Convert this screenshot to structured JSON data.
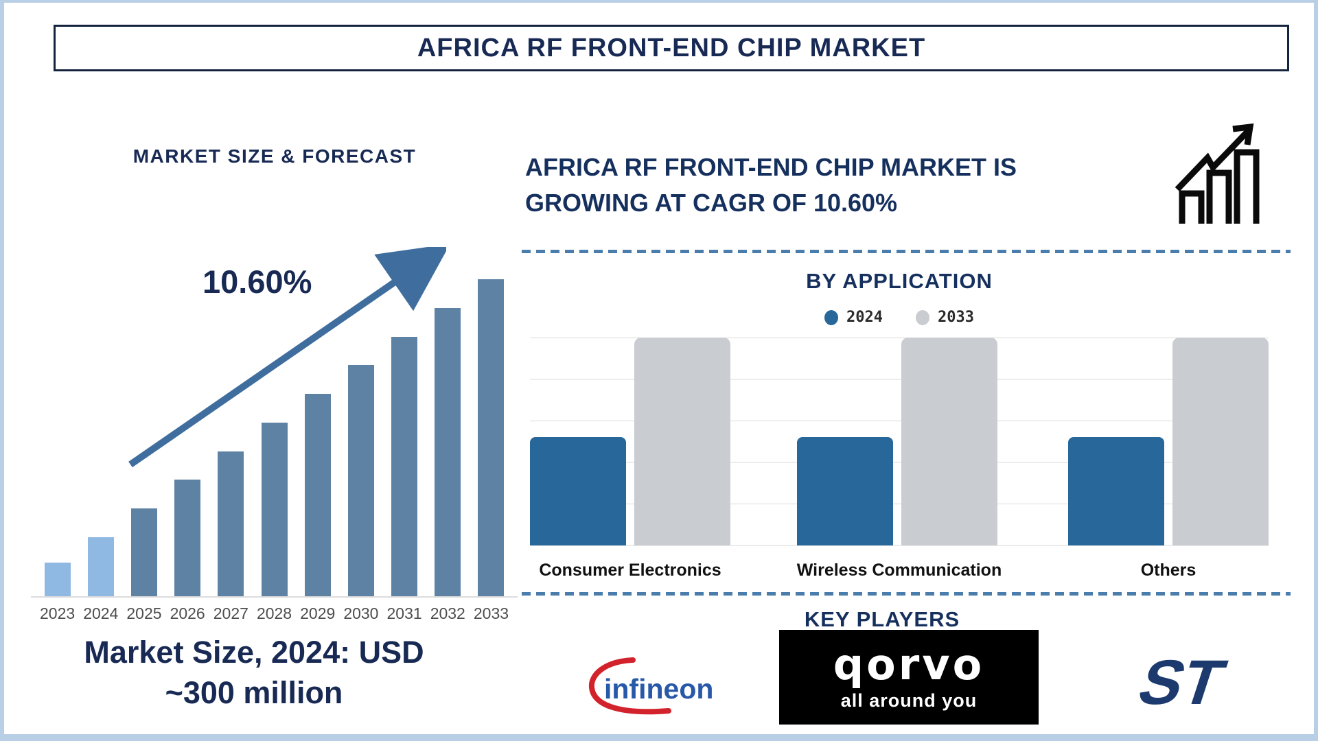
{
  "title": "AFRICA RF FRONT-END CHIP MARKET",
  "colors": {
    "navy": "#182a54",
    "steel_arrow": "#3f6e9e",
    "frame": "#b9cfe6",
    "history_bar": "#8fb9e2",
    "forecast_bar": "#5e82a3",
    "blue_2024": "#27679a",
    "gray_2033": "#c9ccd0",
    "dashed_line": "#4a7dab",
    "year_label": "#4d4d4d"
  },
  "left_panel": {
    "heading": "MARKET SIZE & FORECAST",
    "cagr_annotation": "10.60%",
    "market_size_line1": "Market Size, 2024: USD",
    "market_size_line2": "~300 million"
  },
  "right_panel": {
    "heading_line1": "AFRICA RF FRONT-END CHIP MARKET IS",
    "heading_line2": "GROWING AT CAGR OF 10.60%",
    "by_application_title": "BY APPLICATION",
    "legend": [
      {
        "label": "2024",
        "color": "#27679a"
      },
      {
        "label": "2033",
        "color": "#c9ccd0"
      }
    ],
    "key_players_title": "KEY PLAYERS",
    "players": {
      "infineon": "infineon",
      "qorvo": "qorvo",
      "qorvo_tagline": "all around you",
      "st": "ST"
    }
  },
  "chart_data": [
    {
      "type": "bar",
      "title": "MARKET SIZE & FORECAST",
      "categories": [
        "2023",
        "2024",
        "2025",
        "2026",
        "2027",
        "2028",
        "2029",
        "2030",
        "2031",
        "2032",
        "2033"
      ],
      "values_pct_of_2033": [
        11,
        19,
        28,
        37,
        46,
        55,
        64,
        73,
        82,
        91,
        100
      ],
      "annotation": "10.60%",
      "note": "Market Size, 2024: USD ~300 million",
      "bar_colors": {
        "2023_2024_history": "#8fb9e2",
        "2025_2033_forecast": "#5e82a3"
      },
      "xlabel": "",
      "ylabel": "",
      "grid": false
    },
    {
      "type": "bar",
      "title": "BY APPLICATION",
      "categories": [
        "Consumer Electronics",
        "Wireless Communication",
        "Others"
      ],
      "series": [
        {
          "name": "2024",
          "color": "#27679a",
          "values_pct": [
            52,
            52,
            52
          ]
        },
        {
          "name": "2033",
          "color": "#c9ccd0",
          "values_pct": [
            100,
            100,
            100
          ]
        }
      ],
      "ylim": [
        0,
        100
      ],
      "grid": true,
      "legend_position": "top"
    }
  ]
}
